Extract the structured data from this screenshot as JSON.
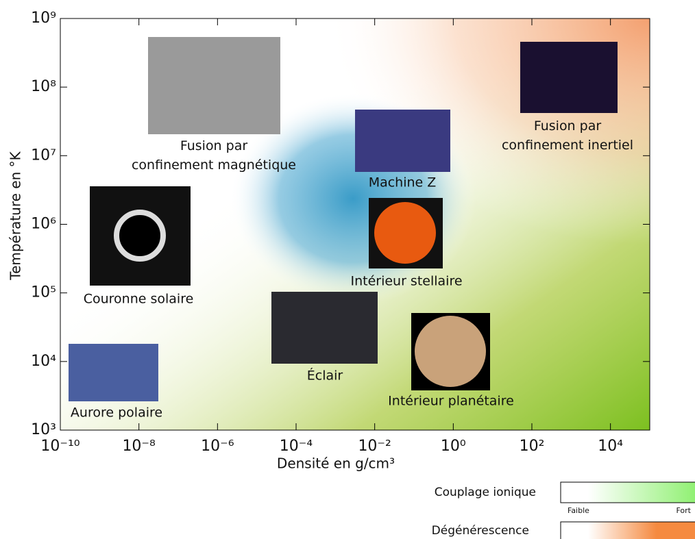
{
  "chart_data": {
    "type": "scatter",
    "xlabel": "Densité en g/cm³",
    "ylabel": "Température en °K",
    "xscale": "log",
    "yscale": "log",
    "xlim": [
      1e-10,
      100000.0
    ],
    "ylim": [
      1000,
      1000000000
    ],
    "xticks": [
      {
        "value": 1e-10,
        "label": "10⁻¹⁰"
      },
      {
        "value": 1e-08,
        "label": "10⁻⁸"
      },
      {
        "value": 1e-06,
        "label": "10⁻⁶"
      },
      {
        "value": 0.0001,
        "label": "10⁻⁴"
      },
      {
        "value": 0.01,
        "label": "10⁻²"
      },
      {
        "value": 1,
        "label": "10⁰"
      },
      {
        "value": 100,
        "label": "10²"
      },
      {
        "value": 10000,
        "label": "10⁴"
      }
    ],
    "yticks": [
      {
        "value": 1000,
        "label": "10³"
      },
      {
        "value": 10000,
        "label": "10⁴"
      },
      {
        "value": 100000,
        "label": "10⁵"
      },
      {
        "value": 1000000,
        "label": "10⁶"
      },
      {
        "value": 10000000,
        "label": "10⁷"
      },
      {
        "value": 100000000,
        "label": "10⁸"
      },
      {
        "value": 1000000000,
        "label": "10⁹"
      }
    ],
    "annotations": [
      "Fusion par\nconfinement magnétique",
      "Fusion par\nconfinement inertiel",
      "Machine Z",
      "Couronne solaire",
      "Intérieur stellaire",
      "Éclair",
      "Intérieur planétaire",
      "Aurore polaire"
    ],
    "legend": {
      "coupling": "Couplage ionique",
      "low": "Faible",
      "high": "Fort",
      "degeneracy": "Dégénérescence"
    }
  }
}
